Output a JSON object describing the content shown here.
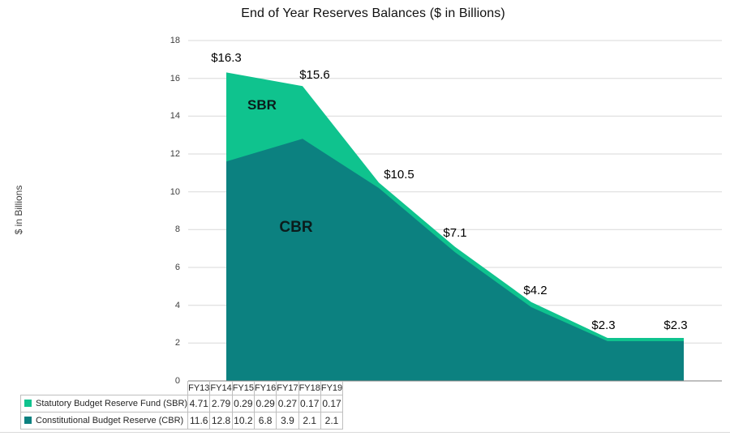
{
  "chart_data": {
    "type": "area",
    "stacked": true,
    "title": "End of Year Reserves Balances ($ in Billions)",
    "ylabel": "$ in Billions",
    "xlabel": "",
    "grid": true,
    "legend_position": "bottom-data-table",
    "ylim": [
      0,
      18
    ],
    "yticks": [
      0,
      2,
      4,
      6,
      8,
      10,
      12,
      14,
      16,
      18
    ],
    "categories": [
      "FY13",
      "FY14",
      "FY15",
      "FY16",
      "FY17",
      "FY18",
      "FY19"
    ],
    "series": [
      {
        "name": "Statutory Budget Reserve Fund (SBR)",
        "short_label": "SBR",
        "color": "#0FC38E",
        "values": [
          4.71,
          2.79,
          0.29,
          0.29,
          0.27,
          0.17,
          0.17
        ],
        "table_values": [
          "4.71",
          "2.79",
          "0.29",
          "0.29",
          "0.27",
          "0.17",
          "0.17"
        ]
      },
      {
        "name": "Constitutional Budget Reserve (CBR)",
        "short_label": "CBR",
        "color": "#0C8180",
        "values": [
          11.6,
          12.8,
          10.2,
          6.8,
          3.9,
          2.1,
          2.1
        ],
        "table_values": [
          "11.6",
          "12.8",
          "10.2",
          "6.8",
          "3.9",
          "2.1",
          "2.1"
        ]
      }
    ],
    "total_labels": [
      "$16.3",
      "$15.6",
      "$10.5",
      "$7.1",
      "$4.2",
      "$2.3",
      "$2.3"
    ],
    "area_labels": [
      "SBR",
      "CBR"
    ],
    "colors": {
      "gridline": "#D9D9D9",
      "zero_axis": "#7F7F7F",
      "table_border": "#BFBFBF"
    }
  }
}
